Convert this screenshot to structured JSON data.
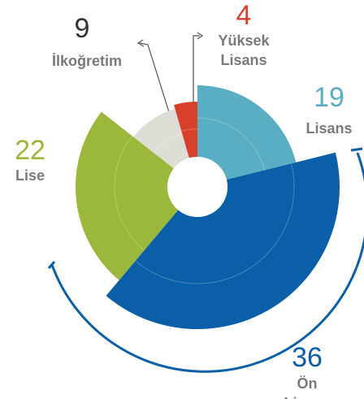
{
  "chart_data": {
    "type": "pie",
    "categories": [
      "Lisans",
      "Ön Lisans",
      "Lise",
      "İlkoğretim",
      "Yüksek Lisans"
    ],
    "values": [
      19,
      36,
      22,
      9,
      4
    ],
    "colors": [
      "#5aaec4",
      "#0a5fa8",
      "#9bb83c",
      "#deded6",
      "#d9402b"
    ]
  }
}
